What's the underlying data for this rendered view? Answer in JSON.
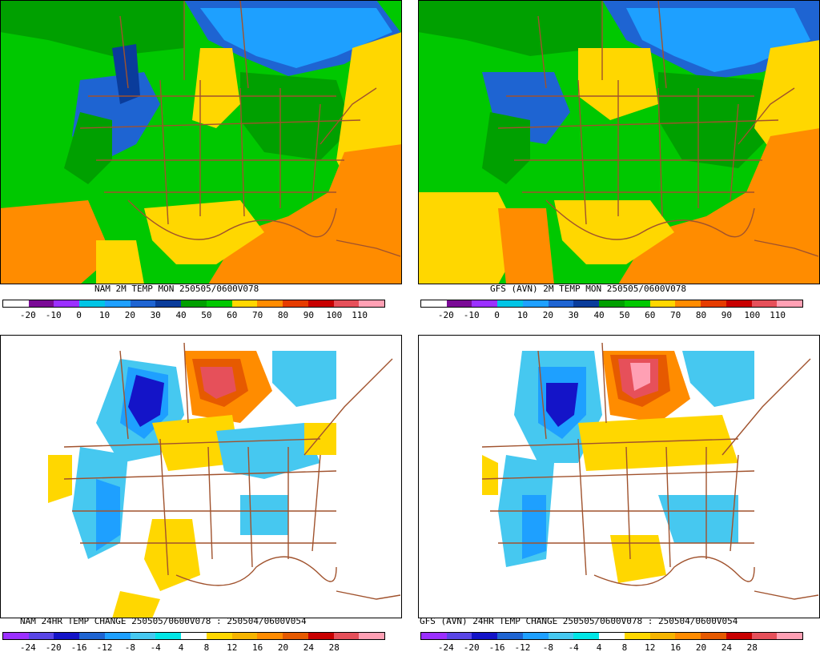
{
  "panels": [
    {
      "title": "NAM 2M TEMP  MON 250505/0600V078",
      "scale": "temp",
      "variant": "nam_temp"
    },
    {
      "title": "GFS (AVN) 2M TEMP  MON 250505/0600V078",
      "scale": "temp",
      "variant": "gfs_temp"
    },
    {
      "title": "NAM 24HR TEMP CHANGE 250505/0600V078 : 250504/0600V054",
      "scale": "change",
      "variant": "nam_change"
    },
    {
      "title": "GFS (AVN) 24HR TEMP CHANGE 250505/0600V078 : 250504/0600V054",
      "scale": "change",
      "variant": "gfs_change"
    }
  ],
  "scales": {
    "temp": {
      "labels": [
        "-20",
        "-10",
        "0",
        "10",
        "20",
        "30",
        "40",
        "50",
        "60",
        "70",
        "80",
        "90",
        "100",
        "110"
      ],
      "colors": [
        "#ffffff",
        "#7a0a96",
        "#9b30ff",
        "#00c5e6",
        "#1ea0ff",
        "#1e64d2",
        "#0a3c9b",
        "#00a000",
        "#00c800",
        "#ffd700",
        "#ff8c00",
        "#e63c00",
        "#c80000",
        "#e6505a",
        "#ffa0b4"
      ]
    },
    "change": {
      "labels": [
        "-24",
        "-20",
        "-16",
        "-12",
        "-8",
        "-4",
        "4",
        "8",
        "12",
        "16",
        "20",
        "24",
        "28"
      ],
      "colors": [
        "#9b30ff",
        "#5a46e6",
        "#1414c8",
        "#1e64d2",
        "#1ea0ff",
        "#46c8f0",
        "#00e6e6",
        "#ffffff",
        "#ffd700",
        "#f5b400",
        "#ff8c00",
        "#e65a00",
        "#c80000",
        "#e6505a",
        "#ffa0b4"
      ]
    }
  }
}
